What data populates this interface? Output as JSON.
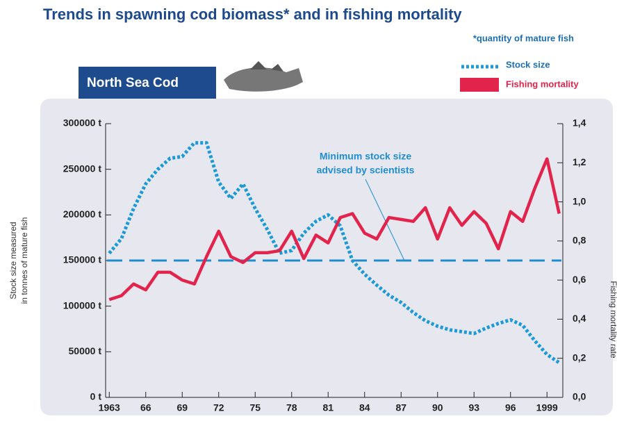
{
  "chart_data": {
    "type": "line",
    "title": "Trends in spawning cod biomass* and in fishing mortality",
    "footnote": "*quantity of mature fish",
    "panel_label": "North Sea Cod",
    "ylabel": [
      "Stock size measured",
      "in tonnes of mature fish"
    ],
    "y2label": "Fishing mortality rate",
    "x": [
      1963,
      1964,
      1965,
      1966,
      1967,
      1968,
      1969,
      1970,
      1971,
      1972,
      1973,
      1974,
      1975,
      1976,
      1977,
      1978,
      1979,
      1980,
      1981,
      1982,
      1983,
      1984,
      1985,
      1986,
      1987,
      1988,
      1989,
      1990,
      1991,
      1992,
      1993,
      1994,
      1995,
      1996,
      1997,
      1998,
      1999,
      2000
    ],
    "xlim": [
      1962.7,
      2000.3
    ],
    "xticks": [
      1963,
      {
        "value": 1966,
        "label": "66"
      },
      {
        "value": 1969,
        "label": "69"
      },
      {
        "value": 1972,
        "label": "72"
      },
      {
        "value": 1975,
        "label": "75"
      },
      {
        "value": 1978,
        "label": "78"
      },
      {
        "value": 1981,
        "label": "81"
      },
      {
        "value": 1984,
        "label": "84"
      },
      {
        "value": 1987,
        "label": "87"
      },
      {
        "value": 1990,
        "label": "90"
      },
      {
        "value": 1993,
        "label": "93"
      },
      {
        "value": 1996,
        "label": "96"
      },
      1999
    ],
    "ylim": [
      0,
      300000
    ],
    "yticks": [
      {
        "value": 0,
        "label": "0 t"
      },
      {
        "value": 50000,
        "label": "50000 t"
      },
      {
        "value": 100000,
        "label": "100000 t"
      },
      {
        "value": 150000,
        "label": "150000 t"
      },
      {
        "value": 200000,
        "label": "200000 t"
      },
      {
        "value": 250000,
        "label": "250000 t"
      },
      {
        "value": 300000,
        "label": "300000 t"
      }
    ],
    "y2lim": [
      0,
      1.4
    ],
    "y2ticks": [
      {
        "value": 0,
        "label": "0,0"
      },
      {
        "value": 0.2,
        "label": "0,2"
      },
      {
        "value": 0.4,
        "label": "0,4"
      },
      {
        "value": 0.6,
        "label": "0,6"
      },
      {
        "value": 0.8,
        "label": "0,8"
      },
      {
        "value": 1.0,
        "label": "1,0"
      },
      {
        "value": 1.2,
        "label": "1,2"
      },
      {
        "value": 1.4,
        "label": "1,4"
      }
    ],
    "series": [
      {
        "name": "Stock size",
        "color": "#1b9ad6",
        "style": "dotted",
        "values": [
          158000,
          174000,
          207000,
          234000,
          250000,
          262000,
          264000,
          279000,
          279000,
          236000,
          218000,
          234000,
          207000,
          184000,
          158000,
          161000,
          180000,
          193000,
          200000,
          188000,
          150000,
          135000,
          123000,
          112000,
          104000,
          93000,
          84000,
          78000,
          74000,
          72000,
          70000,
          76000,
          81000,
          85000,
          79000,
          62000,
          47000,
          38000
        ]
      },
      {
        "name": "Fishing mortality",
        "color": "#e2234b",
        "style": "solid",
        "axis": "y2",
        "values": [
          0.5,
          0.52,
          0.58,
          0.55,
          0.64,
          0.64,
          0.6,
          0.58,
          0.72,
          0.85,
          0.72,
          0.69,
          0.74,
          0.74,
          0.75,
          0.85,
          0.71,
          0.83,
          0.79,
          0.92,
          0.94,
          0.84,
          0.81,
          0.92,
          0.91,
          0.9,
          0.97,
          0.81,
          0.97,
          0.88,
          0.95,
          0.89,
          0.76,
          0.95,
          0.9,
          1.07,
          1.22,
          0.94
        ]
      }
    ],
    "annotation": {
      "lines": [
        "Minimum stock size",
        "advised by scientists"
      ],
      "value": 150000,
      "color": "#1f8ed0"
    }
  }
}
